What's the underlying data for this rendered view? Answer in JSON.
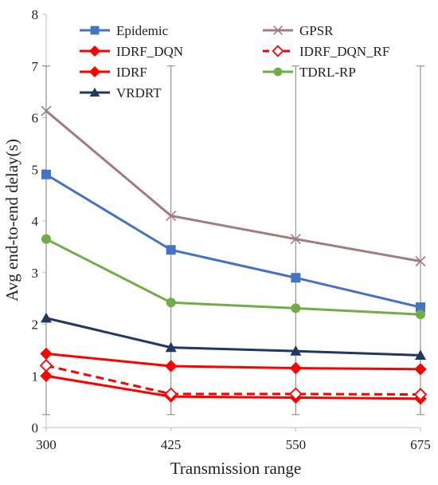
{
  "chart_data": {
    "type": "line",
    "title": "",
    "xlabel": "Transmission range",
    "ylabel": "Avg end-to-end delay(s)",
    "categories": [
      "300",
      "425",
      "550",
      "675"
    ],
    "ylim": [
      0,
      8
    ],
    "yticks": [
      "0",
      "1",
      "2",
      "3",
      "4",
      "5",
      "6",
      "7",
      "8"
    ],
    "grid": false,
    "legend_position": "top",
    "error_bars": {
      "low": 0.25,
      "high": 7.0
    },
    "series": [
      {
        "name": "Epidemic",
        "values": [
          4.9,
          3.44,
          2.9,
          2.33
        ],
        "color": "#4472c4",
        "marker": "square",
        "dashed": false
      },
      {
        "name": "GPSR",
        "values": [
          6.13,
          4.1,
          3.65,
          3.22
        ],
        "color": "#a47a7f",
        "marker": "x",
        "dashed": false
      },
      {
        "name": "IDRF_DQN",
        "values": [
          1.0,
          0.6,
          0.58,
          0.56
        ],
        "color": "#ff0000",
        "marker": "diamond-filled",
        "dashed": false
      },
      {
        "name": "IDRF_DQN_RF",
        "values": [
          1.2,
          0.65,
          0.65,
          0.64
        ],
        "color": "#ff0000",
        "marker": "diamond-open",
        "dashed": true
      },
      {
        "name": "IDRF",
        "values": [
          1.43,
          1.19,
          1.15,
          1.13
        ],
        "color": "#ff0000",
        "marker": "diamond-filled",
        "dashed": false
      },
      {
        "name": "TDRL-RP",
        "values": [
          3.65,
          2.42,
          2.31,
          2.19
        ],
        "color": "#70ad47",
        "marker": "circle",
        "dashed": false
      },
      {
        "name": "VRDRT",
        "values": [
          2.12,
          1.55,
          1.48,
          1.4
        ],
        "color": "#1f3864",
        "marker": "triangle",
        "dashed": false
      }
    ]
  }
}
